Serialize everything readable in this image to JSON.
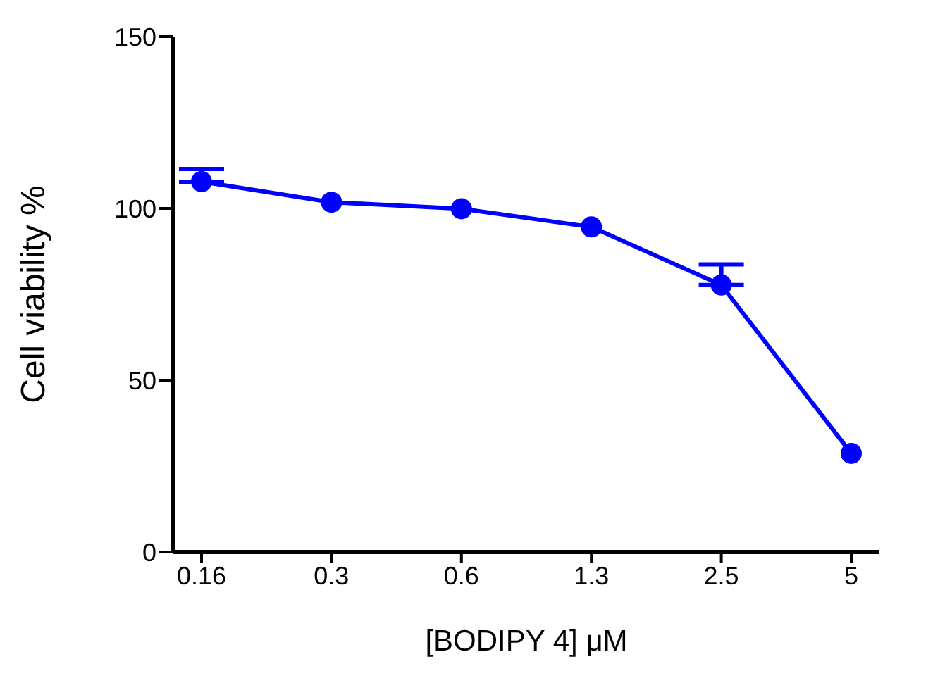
{
  "chart_data": {
    "type": "line",
    "xlabel": "[BODIPY 4] μM",
    "ylabel": "Cell viability %",
    "categories": [
      "0.16",
      "0.3",
      "0.6",
      "1.3",
      "2.5",
      "5"
    ],
    "series": [
      {
        "color": "#0000ff",
        "values": [
          107.8,
          101.8,
          99.9,
          94.6,
          77.7,
          28.7
        ],
        "errors": [
          [
            107.8,
            111.5
          ],
          null,
          null,
          null,
          [
            77.7,
            83.7
          ],
          null
        ]
      }
    ],
    "ylim": [
      0,
      150
    ],
    "yticks": [
      0,
      50,
      100,
      150
    ],
    "grid": false,
    "marker": "circle",
    "line_style": "solid"
  }
}
